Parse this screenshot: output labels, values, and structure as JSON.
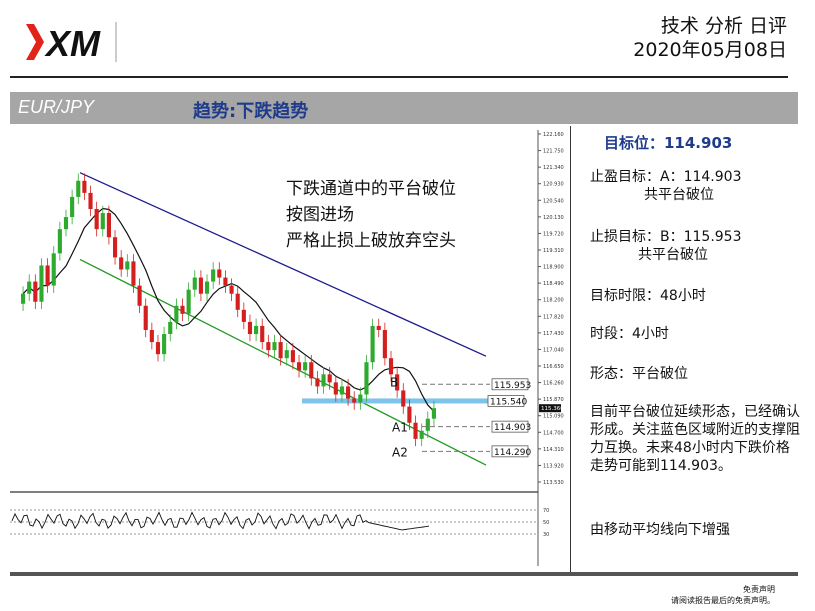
{
  "header": {
    "brand": "XM",
    "title": "技术 分析 日评",
    "date": "2020年05月08日"
  },
  "banner": {
    "pair": "EUR/JPY",
    "trend": "趋势:下跌趋势"
  },
  "annotation": {
    "line1": "下跌通道中的平台破位",
    "line2": "按图进场",
    "line3": "严格止损上破放弃空头"
  },
  "side": {
    "target": "目标位：114.903",
    "tp_line1": "止盈目标：A：114.903",
    "tp_line2": "共平台破位",
    "sl_line1": "止损目标：B：115.953",
    "sl_line2": "共平台破位",
    "timeframe": "目标时限：48小时",
    "period": "时段：4小时",
    "pattern": "形态：平台破位",
    "comment": "目前平台破位延续形态，已经确认形成。关注蓝色区域附近的支撑阻力互换。未来48小时内下跌价格走势可能到114.903。",
    "ma_note": "由移动平均线向下增强"
  },
  "footer": {
    "line1": "免责声明",
    "line2": "请阅读报告最后的免责声明。"
  },
  "colors": {
    "up_candle": "#2eaa2e",
    "down_candle": "#d41f1f",
    "channel_upper": "#1a1a8c",
    "channel_lower": "#1f9a1f",
    "support_zone": "#7ec3ea",
    "ma": "#111111",
    "target_text": "#1f3c8c"
  },
  "chart_data": {
    "type": "candlestick",
    "symbol": "EUR/JPY",
    "timeframe": "4H",
    "ylim": [
      113.53,
      122.16
    ],
    "y_ticks": [
      "122.160",
      "121.750",
      "121.340",
      "120.930",
      "120.540",
      "120.130",
      "119.720",
      "119.310",
      "118.900",
      "118.490",
      "118.200",
      "117.820",
      "117.430",
      "117.040",
      "116.650",
      "116.260",
      "115.870",
      "115.090",
      "114.700",
      "114.310",
      "113.920",
      "113.530"
    ],
    "current_price_label": "115.360",
    "levels": [
      {
        "name": "B",
        "price": 115.953
      },
      {
        "name": "",
        "price": 115.54
      },
      {
        "name": "A1",
        "price": 114.903
      },
      {
        "name": "A2",
        "price": 114.29
      }
    ],
    "level_labels": [
      "115.953",
      "115.540",
      "114.903",
      "114.290"
    ],
    "channel": {
      "upper": {
        "start": 121.2,
        "end": 116.65
      },
      "lower": {
        "start": 119.05,
        "end": 113.95
      }
    },
    "closes": [
      118.2,
      118.5,
      118.0,
      118.9,
      118.4,
      119.2,
      119.8,
      120.1,
      120.6,
      121.0,
      120.7,
      120.3,
      119.8,
      120.2,
      119.6,
      119.1,
      118.8,
      119.0,
      118.4,
      117.9,
      117.3,
      117.0,
      116.7,
      117.2,
      117.5,
      117.9,
      117.7,
      118.3,
      118.6,
      118.2,
      118.5,
      118.8,
      118.6,
      118.4,
      118.2,
      117.8,
      117.5,
      117.2,
      117.4,
      117.0,
      116.8,
      117.0,
      116.6,
      116.8,
      116.5,
      116.3,
      116.5,
      116.1,
      115.9,
      116.2,
      116.0,
      115.7,
      115.9,
      115.6,
      115.5,
      115.7,
      116.5,
      117.4,
      117.3,
      116.6,
      116.2,
      115.8,
      115.4,
      115.0,
      114.6,
      114.8,
      115.1,
      115.36
    ],
    "rsi_levels": [
      70,
      50,
      30
    ]
  }
}
